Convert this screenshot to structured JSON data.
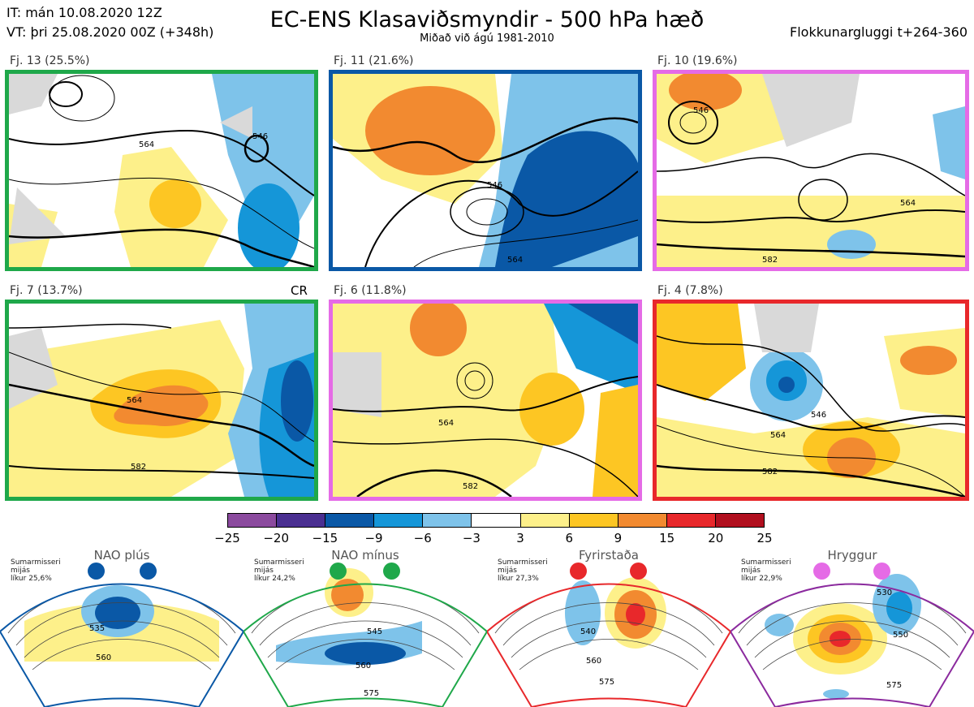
{
  "header": {
    "init_line": "IT: mán 10.08.2020 12Z",
    "valid_line": "VT: þri 25.08.2020 00Z  (+348h)",
    "title": "EC-ENS Klasaviðsmyndir - 500 hPa hæð",
    "subtitle": "Miðað við ágú 1981-2010",
    "window": "Flokkunargluggi t+264-360"
  },
  "clusters": [
    {
      "label": "Fj. 13 (25.5%)",
      "border": "#1fa84a"
    },
    {
      "label": "Fj. 11 (21.6%)",
      "border": "#0a58a6"
    },
    {
      "label": "Fj. 10 (19.6%)",
      "border": "#e56be6"
    },
    {
      "label": "Fj. 7 (13.7%)",
      "border": "#1fa84a"
    },
    {
      "label": "Fj. 6 (11.8%)",
      "border": "#e56be6"
    },
    {
      "label": "Fj. 4 (7.8%)",
      "border": "#e8282b"
    }
  ],
  "cr_mark": "CR",
  "contour_labels": {
    "c546": "546",
    "c564": "564",
    "c582": "582"
  },
  "colorbar": {
    "colors": [
      "#8b4a9e",
      "#4a2f91",
      "#0a58a6",
      "#1596d8",
      "#7ec3ea",
      "#ffffff",
      "#fdf08a",
      "#fdc623",
      "#f28a30",
      "#e8282b",
      "#b10f1e"
    ],
    "ticks": [
      "−25",
      "−20",
      "−15",
      "−9",
      "−6",
      "−3",
      "3",
      "6",
      "9",
      "15",
      "20",
      "25"
    ]
  },
  "regimes": [
    {
      "title": "NAO plús",
      "season": "Sumarmisseri",
      "stat": "mijás",
      "prob": "líkur 25,6%",
      "color": "#0a58a6",
      "labels": [
        "535",
        "560"
      ]
    },
    {
      "title": "NAO mínus",
      "season": "Sumarmisseri",
      "stat": "mijás",
      "prob": "líkur 24,2%",
      "color": "#1fa84a",
      "labels": [
        "545",
        "560",
        "575"
      ]
    },
    {
      "title": "Fyrirstaða",
      "season": "Sumarmisseri",
      "stat": "mijás",
      "prob": "líkur 27,3%",
      "color": "#e8282b",
      "labels": [
        "540",
        "560",
        "575"
      ]
    },
    {
      "title": "Hryggur",
      "season": "Sumarmisseri",
      "stat": "mijás",
      "prob": "líkur 22,9%",
      "color": "#e56be6",
      "labels": [
        "530",
        "550",
        "575"
      ]
    }
  ]
}
